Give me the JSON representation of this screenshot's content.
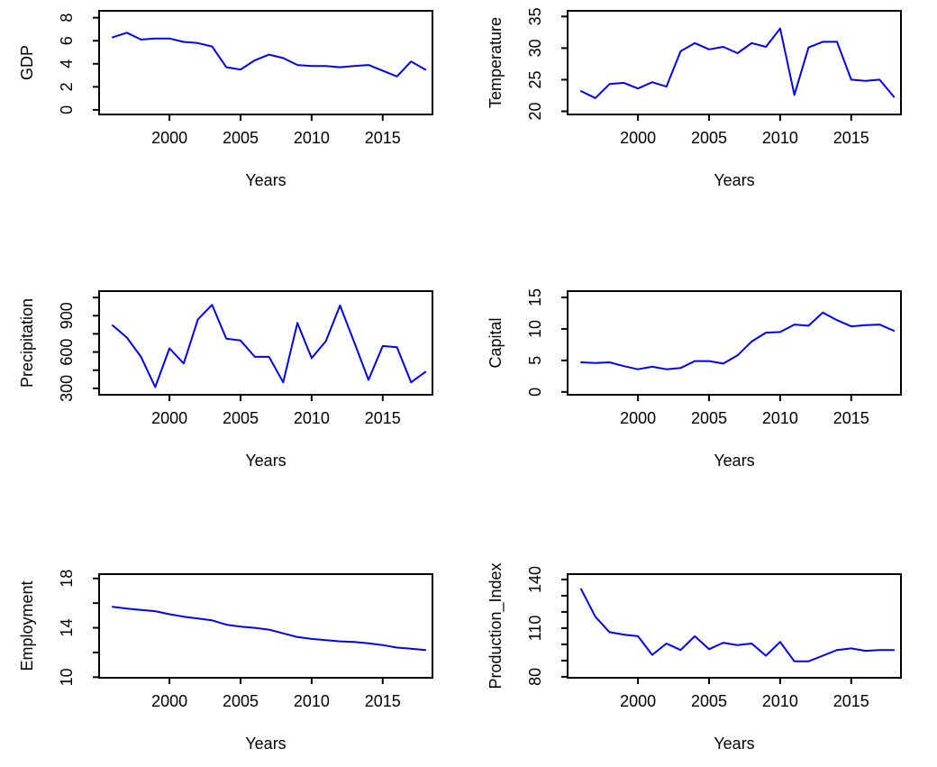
{
  "figure": {
    "background": "#ffffff",
    "line_color": "#0000ff",
    "axis_color": "#000000",
    "layout": "3x2 grid of line plots",
    "shared_x_label": "Years"
  },
  "chart_data": [
    {
      "id": "gdp",
      "type": "line",
      "title": "",
      "ylabel": "GDP",
      "xlabel": "Years",
      "legend": "none",
      "grid": false,
      "line_color": "#0000ff",
      "xlim": [
        1995.05,
        2018.5
      ],
      "ylim": [
        -0.4,
        8.6
      ],
      "x": [
        1996,
        1997,
        1998,
        1999,
        2000,
        2001,
        2002,
        2003,
        2004,
        2005,
        2006,
        2007,
        2008,
        2009,
        2010,
        2011,
        2012,
        2013,
        2014,
        2015,
        2016,
        2017,
        2018
      ],
      "values": [
        6.3,
        6.7,
        6.1,
        6.2,
        6.2,
        5.9,
        5.8,
        5.5,
        3.7,
        3.5,
        4.3,
        4.8,
        4.5,
        3.9,
        3.8,
        3.8,
        3.7,
        3.8,
        3.9,
        3.4,
        2.9,
        4.2,
        3.5
      ],
      "xticks": [
        {
          "v": 2000,
          "label": "2000"
        },
        {
          "v": 2005,
          "label": "2005"
        },
        {
          "v": 2010,
          "label": "2010"
        },
        {
          "v": 2015,
          "label": "2015"
        }
      ],
      "yticks": [
        {
          "v": 0,
          "label": "0"
        },
        {
          "v": 2,
          "label": "2"
        },
        {
          "v": 4,
          "label": "4"
        },
        {
          "v": 6,
          "label": "6"
        },
        {
          "v": 8,
          "label": "8"
        }
      ]
    },
    {
      "id": "temperature",
      "type": "line",
      "title": "",
      "ylabel": "Temperature",
      "xlabel": "Years",
      "legend": "none",
      "grid": false,
      "line_color": "#0000ff",
      "xlim": [
        1995.05,
        2018.5
      ],
      "ylim": [
        19.5,
        35.9
      ],
      "x": [
        1996,
        1997,
        1998,
        1999,
        2000,
        2001,
        2002,
        2003,
        2004,
        2005,
        2006,
        2007,
        2008,
        2009,
        2010,
        2011,
        2012,
        2013,
        2014,
        2015,
        2016,
        2017,
        2018
      ],
      "values": [
        23.2,
        22.1,
        24.3,
        24.5,
        23.6,
        24.6,
        23.9,
        29.5,
        30.8,
        29.8,
        30.2,
        29.2,
        30.8,
        30.2,
        33.1,
        22.6,
        30.1,
        31.0,
        31.0,
        25.0,
        24.8,
        25.0,
        22.3
      ],
      "xticks": [
        {
          "v": 2000,
          "label": "2000"
        },
        {
          "v": 2005,
          "label": "2005"
        },
        {
          "v": 2010,
          "label": "2010"
        },
        {
          "v": 2015,
          "label": "2015"
        }
      ],
      "yticks": [
        {
          "v": 20,
          "label": "20"
        },
        {
          "v": 25,
          "label": "25"
        },
        {
          "v": 30,
          "label": "30"
        },
        {
          "v": 35,
          "label": "35"
        }
      ]
    },
    {
      "id": "precipitation",
      "type": "line",
      "title": "",
      "ylabel": "Precipitation",
      "xlabel": "Years",
      "legend": "none",
      "grid": false,
      "line_color": "#0000ff",
      "xlim": [
        1995.05,
        2018.5
      ],
      "ylim": [
        247,
        1103
      ],
      "x": [
        1996,
        1997,
        1998,
        1999,
        2000,
        2001,
        2002,
        2003,
        2004,
        2005,
        2006,
        2007,
        2008,
        2009,
        2010,
        2011,
        2012,
        2013,
        2014,
        2015,
        2016,
        2017,
        2018
      ],
      "values": [
        820,
        720,
        560,
        310,
        630,
        505,
        870,
        990,
        710,
        695,
        560,
        560,
        350,
        840,
        550,
        690,
        985,
        680,
        370,
        650,
        640,
        350,
        435
      ],
      "xticks": [
        {
          "v": 2000,
          "label": "2000"
        },
        {
          "v": 2005,
          "label": "2005"
        },
        {
          "v": 2010,
          "label": "2010"
        },
        {
          "v": 2015,
          "label": "2015"
        }
      ],
      "yticks": [
        {
          "v": 300,
          "label": "300"
        },
        {
          "v": 450,
          "label": ""
        },
        {
          "v": 600,
          "label": "600"
        },
        {
          "v": 750,
          "label": ""
        },
        {
          "v": 900,
          "label": "900"
        },
        {
          "v": 1050,
          "label": ""
        }
      ]
    },
    {
      "id": "capital",
      "type": "line",
      "title": "",
      "ylabel": "Capital",
      "xlabel": "Years",
      "legend": "none",
      "grid": false,
      "line_color": "#0000ff",
      "xlim": [
        1995.05,
        2018.5
      ],
      "ylim": [
        -0.45,
        16.0
      ],
      "x": [
        1996,
        1997,
        1998,
        1999,
        2000,
        2001,
        2002,
        2003,
        2004,
        2005,
        2006,
        2007,
        2008,
        2009,
        2010,
        2011,
        2012,
        2013,
        2014,
        2015,
        2016,
        2017,
        2018
      ],
      "values": [
        4.7,
        4.6,
        4.7,
        4.1,
        3.6,
        4.0,
        3.6,
        3.8,
        4.9,
        4.9,
        4.5,
        5.8,
        8.0,
        9.4,
        9.5,
        10.7,
        10.5,
        12.6,
        11.4,
        10.4,
        10.6,
        10.7,
        9.7
      ],
      "xticks": [
        {
          "v": 2000,
          "label": "2000"
        },
        {
          "v": 2005,
          "label": "2005"
        },
        {
          "v": 2010,
          "label": "2010"
        },
        {
          "v": 2015,
          "label": "2015"
        }
      ],
      "yticks": [
        {
          "v": 0,
          "label": "0"
        },
        {
          "v": 5,
          "label": "5"
        },
        {
          "v": 10,
          "label": "10"
        },
        {
          "v": 15,
          "label": "15"
        }
      ]
    },
    {
      "id": "employment",
      "type": "line",
      "title": "",
      "ylabel": "Employment",
      "xlabel": "Years",
      "legend": "none",
      "grid": false,
      "line_color": "#0000ff",
      "xlim": [
        1995.05,
        2018.5
      ],
      "ylim": [
        9.95,
        18.35
      ],
      "x": [
        1996,
        1997,
        1998,
        1999,
        2000,
        2001,
        2002,
        2003,
        2004,
        2005,
        2006,
        2007,
        2008,
        2009,
        2010,
        2011,
        2012,
        2013,
        2014,
        2015,
        2016,
        2017,
        2018
      ],
      "values": [
        15.7,
        15.55,
        15.45,
        15.35,
        15.1,
        14.9,
        14.75,
        14.6,
        14.25,
        14.1,
        14.0,
        13.85,
        13.55,
        13.25,
        13.1,
        13.0,
        12.9,
        12.85,
        12.75,
        12.6,
        12.4,
        12.3,
        12.2
      ],
      "xticks": [
        {
          "v": 2000,
          "label": "2000"
        },
        {
          "v": 2005,
          "label": "2005"
        },
        {
          "v": 2010,
          "label": "2010"
        },
        {
          "v": 2015,
          "label": "2015"
        }
      ],
      "yticks": [
        {
          "v": 10,
          "label": "10"
        },
        {
          "v": 12,
          "label": ""
        },
        {
          "v": 14,
          "label": "14"
        },
        {
          "v": 16,
          "label": ""
        },
        {
          "v": 18,
          "label": "18"
        }
      ]
    },
    {
      "id": "production_index",
      "type": "line",
      "title": "",
      "ylabel": "Production_Index",
      "xlabel": "Years",
      "legend": "none",
      "grid": false,
      "line_color": "#0000ff",
      "xlim": [
        1995.05,
        2018.5
      ],
      "ylim": [
        79.4,
        143.3
      ],
      "x": [
        1996,
        1997,
        1998,
        1999,
        2000,
        2001,
        2002,
        2003,
        2004,
        2005,
        2006,
        2007,
        2008,
        2009,
        2010,
        2011,
        2012,
        2013,
        2014,
        2015,
        2016,
        2017,
        2018
      ],
      "values": [
        134,
        117,
        107.5,
        106,
        105,
        93.5,
        100.5,
        96.5,
        105,
        97,
        101,
        99.5,
        100.5,
        93,
        101.5,
        89.5,
        89.5,
        93,
        96.5,
        97.5,
        96,
        96.5,
        96.5
      ],
      "xticks": [
        {
          "v": 2000,
          "label": "2000"
        },
        {
          "v": 2005,
          "label": "2005"
        },
        {
          "v": 2010,
          "label": "2010"
        },
        {
          "v": 2015,
          "label": "2015"
        }
      ],
      "yticks": [
        {
          "v": 80,
          "label": "80"
        },
        {
          "v": 90,
          "label": ""
        },
        {
          "v": 100,
          "label": ""
        },
        {
          "v": 110,
          "label": "110"
        },
        {
          "v": 120,
          "label": ""
        },
        {
          "v": 130,
          "label": ""
        },
        {
          "v": 140,
          "label": "140"
        }
      ]
    }
  ]
}
